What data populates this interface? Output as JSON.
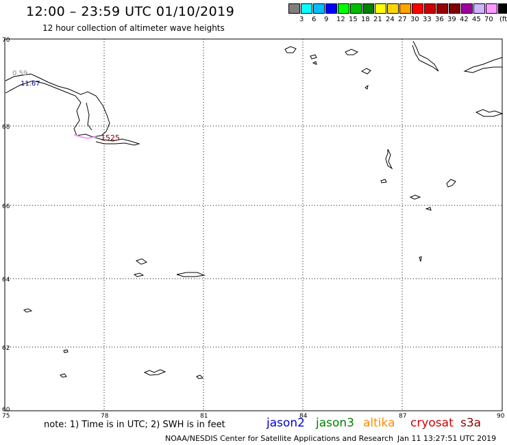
{
  "header": {
    "title": "12:00 – 23:59 UTC 01/10/2019",
    "subtitle": "12 hour collection of altimeter wave heights"
  },
  "legend": {
    "unit": "(ft)",
    "bins": [
      {
        "label": "",
        "color": "#7f7f7f"
      },
      {
        "label": "3",
        "color": "#00ffff"
      },
      {
        "label": "6",
        "color": "#00bfff"
      },
      {
        "label": "9",
        "color": "#0000ff"
      },
      {
        "label": "12",
        "color": "#00ff00"
      },
      {
        "label": "15",
        "color": "#00bf00"
      },
      {
        "label": "18",
        "color": "#008000"
      },
      {
        "label": "21",
        "color": "#ffff00"
      },
      {
        "label": "24",
        "color": "#ffd700"
      },
      {
        "label": "27",
        "color": "#ffa500"
      },
      {
        "label": "30",
        "color": "#ff0000"
      },
      {
        "label": "33",
        "color": "#cc0000"
      },
      {
        "label": "36",
        "color": "#990000"
      },
      {
        "label": "39",
        "color": "#800000"
      },
      {
        "label": "42",
        "color": "#a000a0"
      },
      {
        "label": "45",
        "color": "#cdb5ff"
      },
      {
        "label": "70",
        "color": "#ff99ff"
      },
      {
        "label": "",
        "color": "#000000"
      }
    ]
  },
  "map": {
    "lat_labels": [
      "70",
      "68",
      "66",
      "64",
      "62",
      "60"
    ],
    "lon_labels": [
      "75",
      "78",
      "81",
      "84",
      "87",
      "90"
    ],
    "track_annotations": [
      {
        "text": "0.59",
        "color": "#888888"
      },
      {
        "text": "11.67",
        "color": "#00008b"
      },
      {
        "text": "1525",
        "color": "#800000"
      }
    ]
  },
  "footer": {
    "note": "note: 1) Time is in UTC; 2) SWH is in feet",
    "satellites": [
      {
        "name": "jason2",
        "color": "#0000cd"
      },
      {
        "name": "jason3",
        "color": "#008000"
      },
      {
        "name": "altika",
        "color": "#ff8c00"
      },
      {
        "name": "cryosat",
        "color": "#cc0000"
      },
      {
        "name": "s3a",
        "color": "#8b0000"
      }
    ],
    "credit": "NOAA/NESDIS Center for Satellite Applications and Research",
    "timestamp": "Jan 11 13:27:51 UTC 2019"
  }
}
